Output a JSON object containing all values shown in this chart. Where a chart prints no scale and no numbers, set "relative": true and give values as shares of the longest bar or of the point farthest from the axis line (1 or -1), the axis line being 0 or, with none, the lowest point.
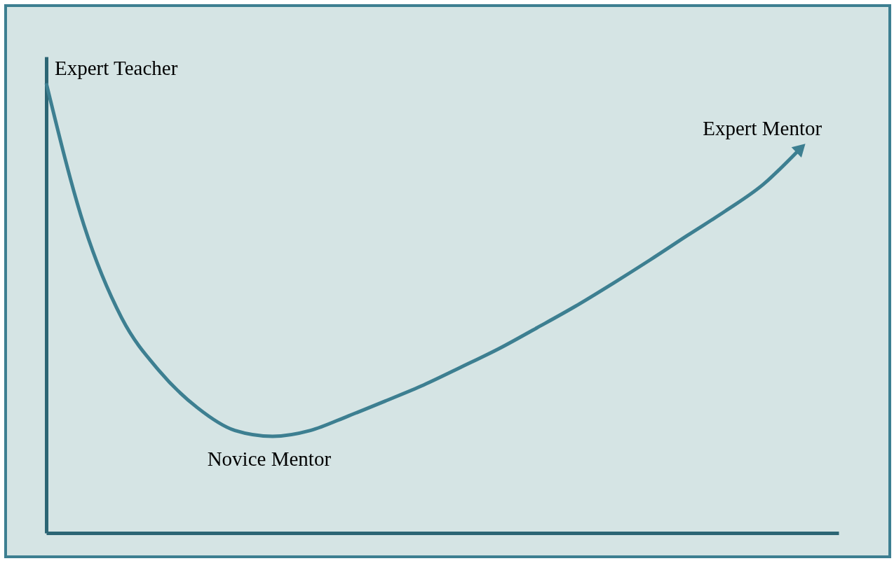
{
  "chart_data": {
    "type": "line",
    "relative": true,
    "categories": [
      null,
      null,
      null,
      null,
      null,
      null,
      null,
      null,
      null,
      null,
      null,
      null,
      null,
      null,
      null,
      null,
      null,
      null,
      null,
      null,
      null,
      null
    ],
    "series": [
      {
        "color": "#3d7f91",
        "values": [
          1.0,
          0.684,
          0.478,
          0.36,
          0.279,
          0.228,
          0.215,
          0.228,
          0.26,
          0.294,
          0.329,
          0.369,
          0.41,
          0.456,
          0.503,
          0.554,
          0.607,
          0.662,
          0.716,
          0.775,
          0.856,
          null
        ]
      }
    ],
    "annotations": [
      "Expert Teacher",
      "Novice Mentor",
      "Expert Mentor"
    ],
    "grid": false,
    "marker": "none",
    "line_style": "solid"
  }
}
